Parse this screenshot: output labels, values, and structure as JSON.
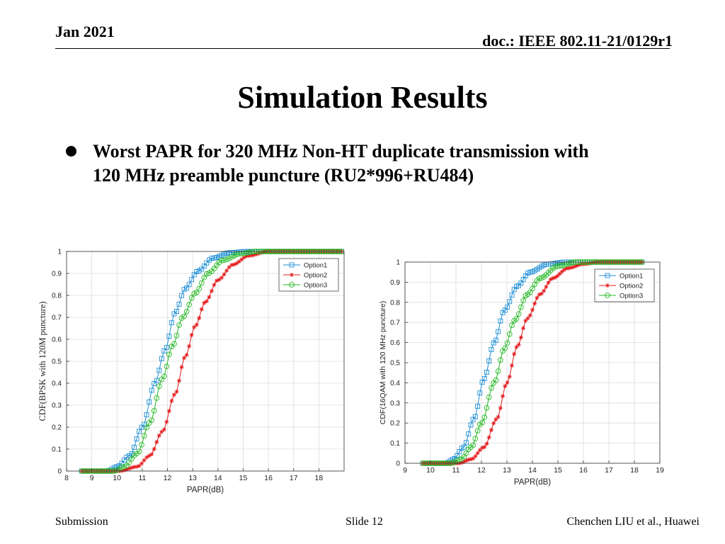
{
  "header": {
    "date": "Jan 2021",
    "doc": "doc.: IEEE 802.11-21/0129r1"
  },
  "slide_title": "Simulation Results",
  "bullet": {
    "line1": "Worst PAPR for 320 MHz Non-HT duplicate transmission with",
    "line2": "120 MHz  preamble puncture (RU2*996+RU484)"
  },
  "footer": {
    "left": "Submission",
    "center": "Slide 12",
    "right": "Chenchen LIU et al., Huawei"
  },
  "colors": {
    "option1": "#1f8fd6",
    "option2": "#e41a1c",
    "option3": "#22b822"
  },
  "chart_data": [
    {
      "type": "line",
      "title": "",
      "xlabel": "PAPR(dB)",
      "ylabel": "CDF(BPSK with 120M puncture)",
      "xlim": [
        8,
        19
      ],
      "ylim": [
        0,
        1
      ],
      "xticks": [
        8,
        9,
        10,
        11,
        12,
        13,
        14,
        15,
        16,
        17,
        18
      ],
      "yticks": [
        0,
        0.1,
        0.2,
        0.3,
        0.4,
        0.5,
        0.6,
        0.7,
        0.8,
        0.9,
        1
      ],
      "grid": true,
      "legend_position": "top-right",
      "series": [
        {
          "name": "Option1",
          "marker": "square",
          "color": "#1f8fd6",
          "points": [
            [
              8.6,
              0
            ],
            [
              9.6,
              0
            ],
            [
              10.0,
              0.02
            ],
            [
              10.5,
              0.07
            ],
            [
              11.0,
              0.2
            ],
            [
              11.5,
              0.4
            ],
            [
              11.9,
              0.55
            ],
            [
              12.3,
              0.72
            ],
            [
              12.7,
              0.83
            ],
            [
              13.2,
              0.91
            ],
            [
              13.8,
              0.97
            ],
            [
              14.5,
              0.995
            ],
            [
              15.2,
              1.0
            ],
            [
              18.9,
              1.0
            ]
          ]
        },
        {
          "name": "Option2",
          "marker": "star",
          "color": "#e41a1c",
          "points": [
            [
              8.6,
              0
            ],
            [
              10.1,
              0
            ],
            [
              10.8,
              0.02
            ],
            [
              11.3,
              0.07
            ],
            [
              11.8,
              0.18
            ],
            [
              12.3,
              0.35
            ],
            [
              12.7,
              0.52
            ],
            [
              13.1,
              0.66
            ],
            [
              13.5,
              0.77
            ],
            [
              14.0,
              0.87
            ],
            [
              14.6,
              0.94
            ],
            [
              15.2,
              0.98
            ],
            [
              16.0,
              1.0
            ],
            [
              18.9,
              1.0
            ]
          ]
        },
        {
          "name": "Option3",
          "marker": "circle",
          "color": "#22b822",
          "points": [
            [
              8.6,
              0
            ],
            [
              9.9,
              0
            ],
            [
              10.3,
              0.02
            ],
            [
              10.8,
              0.08
            ],
            [
              11.3,
              0.22
            ],
            [
              11.8,
              0.42
            ],
            [
              12.2,
              0.57
            ],
            [
              12.6,
              0.7
            ],
            [
              13.1,
              0.81
            ],
            [
              13.6,
              0.9
            ],
            [
              14.2,
              0.96
            ],
            [
              14.9,
              0.99
            ],
            [
              15.5,
              1.0
            ],
            [
              18.9,
              1.0
            ]
          ]
        }
      ]
    },
    {
      "type": "line",
      "title": "",
      "xlabel": "PAPR(dB)",
      "ylabel": "CDF(16QAM with 120 MHz puncture)",
      "xlim": [
        9,
        19
      ],
      "ylim": [
        0,
        1
      ],
      "xticks": [
        9,
        10,
        11,
        12,
        13,
        14,
        15,
        16,
        17,
        18,
        19
      ],
      "yticks": [
        0,
        0.1,
        0.2,
        0.3,
        0.4,
        0.5,
        0.6,
        0.7,
        0.8,
        0.9,
        1
      ],
      "grid": true,
      "legend_position": "top-right",
      "series": [
        {
          "name": "Option1",
          "marker": "square",
          "color": "#1f8fd6",
          "points": [
            [
              9.7,
              0
            ],
            [
              10.6,
              0
            ],
            [
              10.9,
              0.02
            ],
            [
              11.3,
              0.08
            ],
            [
              11.7,
              0.22
            ],
            [
              12.1,
              0.42
            ],
            [
              12.5,
              0.6
            ],
            [
              12.9,
              0.76
            ],
            [
              13.4,
              0.88
            ],
            [
              13.9,
              0.95
            ],
            [
              14.6,
              0.99
            ],
            [
              15.3,
              1.0
            ],
            [
              18.3,
              1.0
            ]
          ]
        },
        {
          "name": "Option2",
          "marker": "star",
          "color": "#e41a1c",
          "points": [
            [
              9.7,
              0
            ],
            [
              11.1,
              0
            ],
            [
              11.6,
              0.02
            ],
            [
              12.1,
              0.08
            ],
            [
              12.6,
              0.22
            ],
            [
              13.0,
              0.4
            ],
            [
              13.4,
              0.58
            ],
            [
              13.8,
              0.72
            ],
            [
              14.3,
              0.84
            ],
            [
              14.8,
              0.92
            ],
            [
              15.4,
              0.97
            ],
            [
              16.0,
              0.99
            ],
            [
              16.6,
              1.0
            ],
            [
              18.3,
              1.0
            ]
          ]
        },
        {
          "name": "Option3",
          "marker": "circle",
          "color": "#22b822",
          "points": [
            [
              9.7,
              0
            ],
            [
              10.8,
              0
            ],
            [
              11.2,
              0.02
            ],
            [
              11.6,
              0.08
            ],
            [
              12.0,
              0.2
            ],
            [
              12.5,
              0.4
            ],
            [
              12.9,
              0.57
            ],
            [
              13.3,
              0.71
            ],
            [
              13.8,
              0.84
            ],
            [
              14.3,
              0.92
            ],
            [
              15.0,
              0.98
            ],
            [
              15.7,
              1.0
            ],
            [
              18.3,
              1.0
            ]
          ]
        }
      ]
    }
  ]
}
